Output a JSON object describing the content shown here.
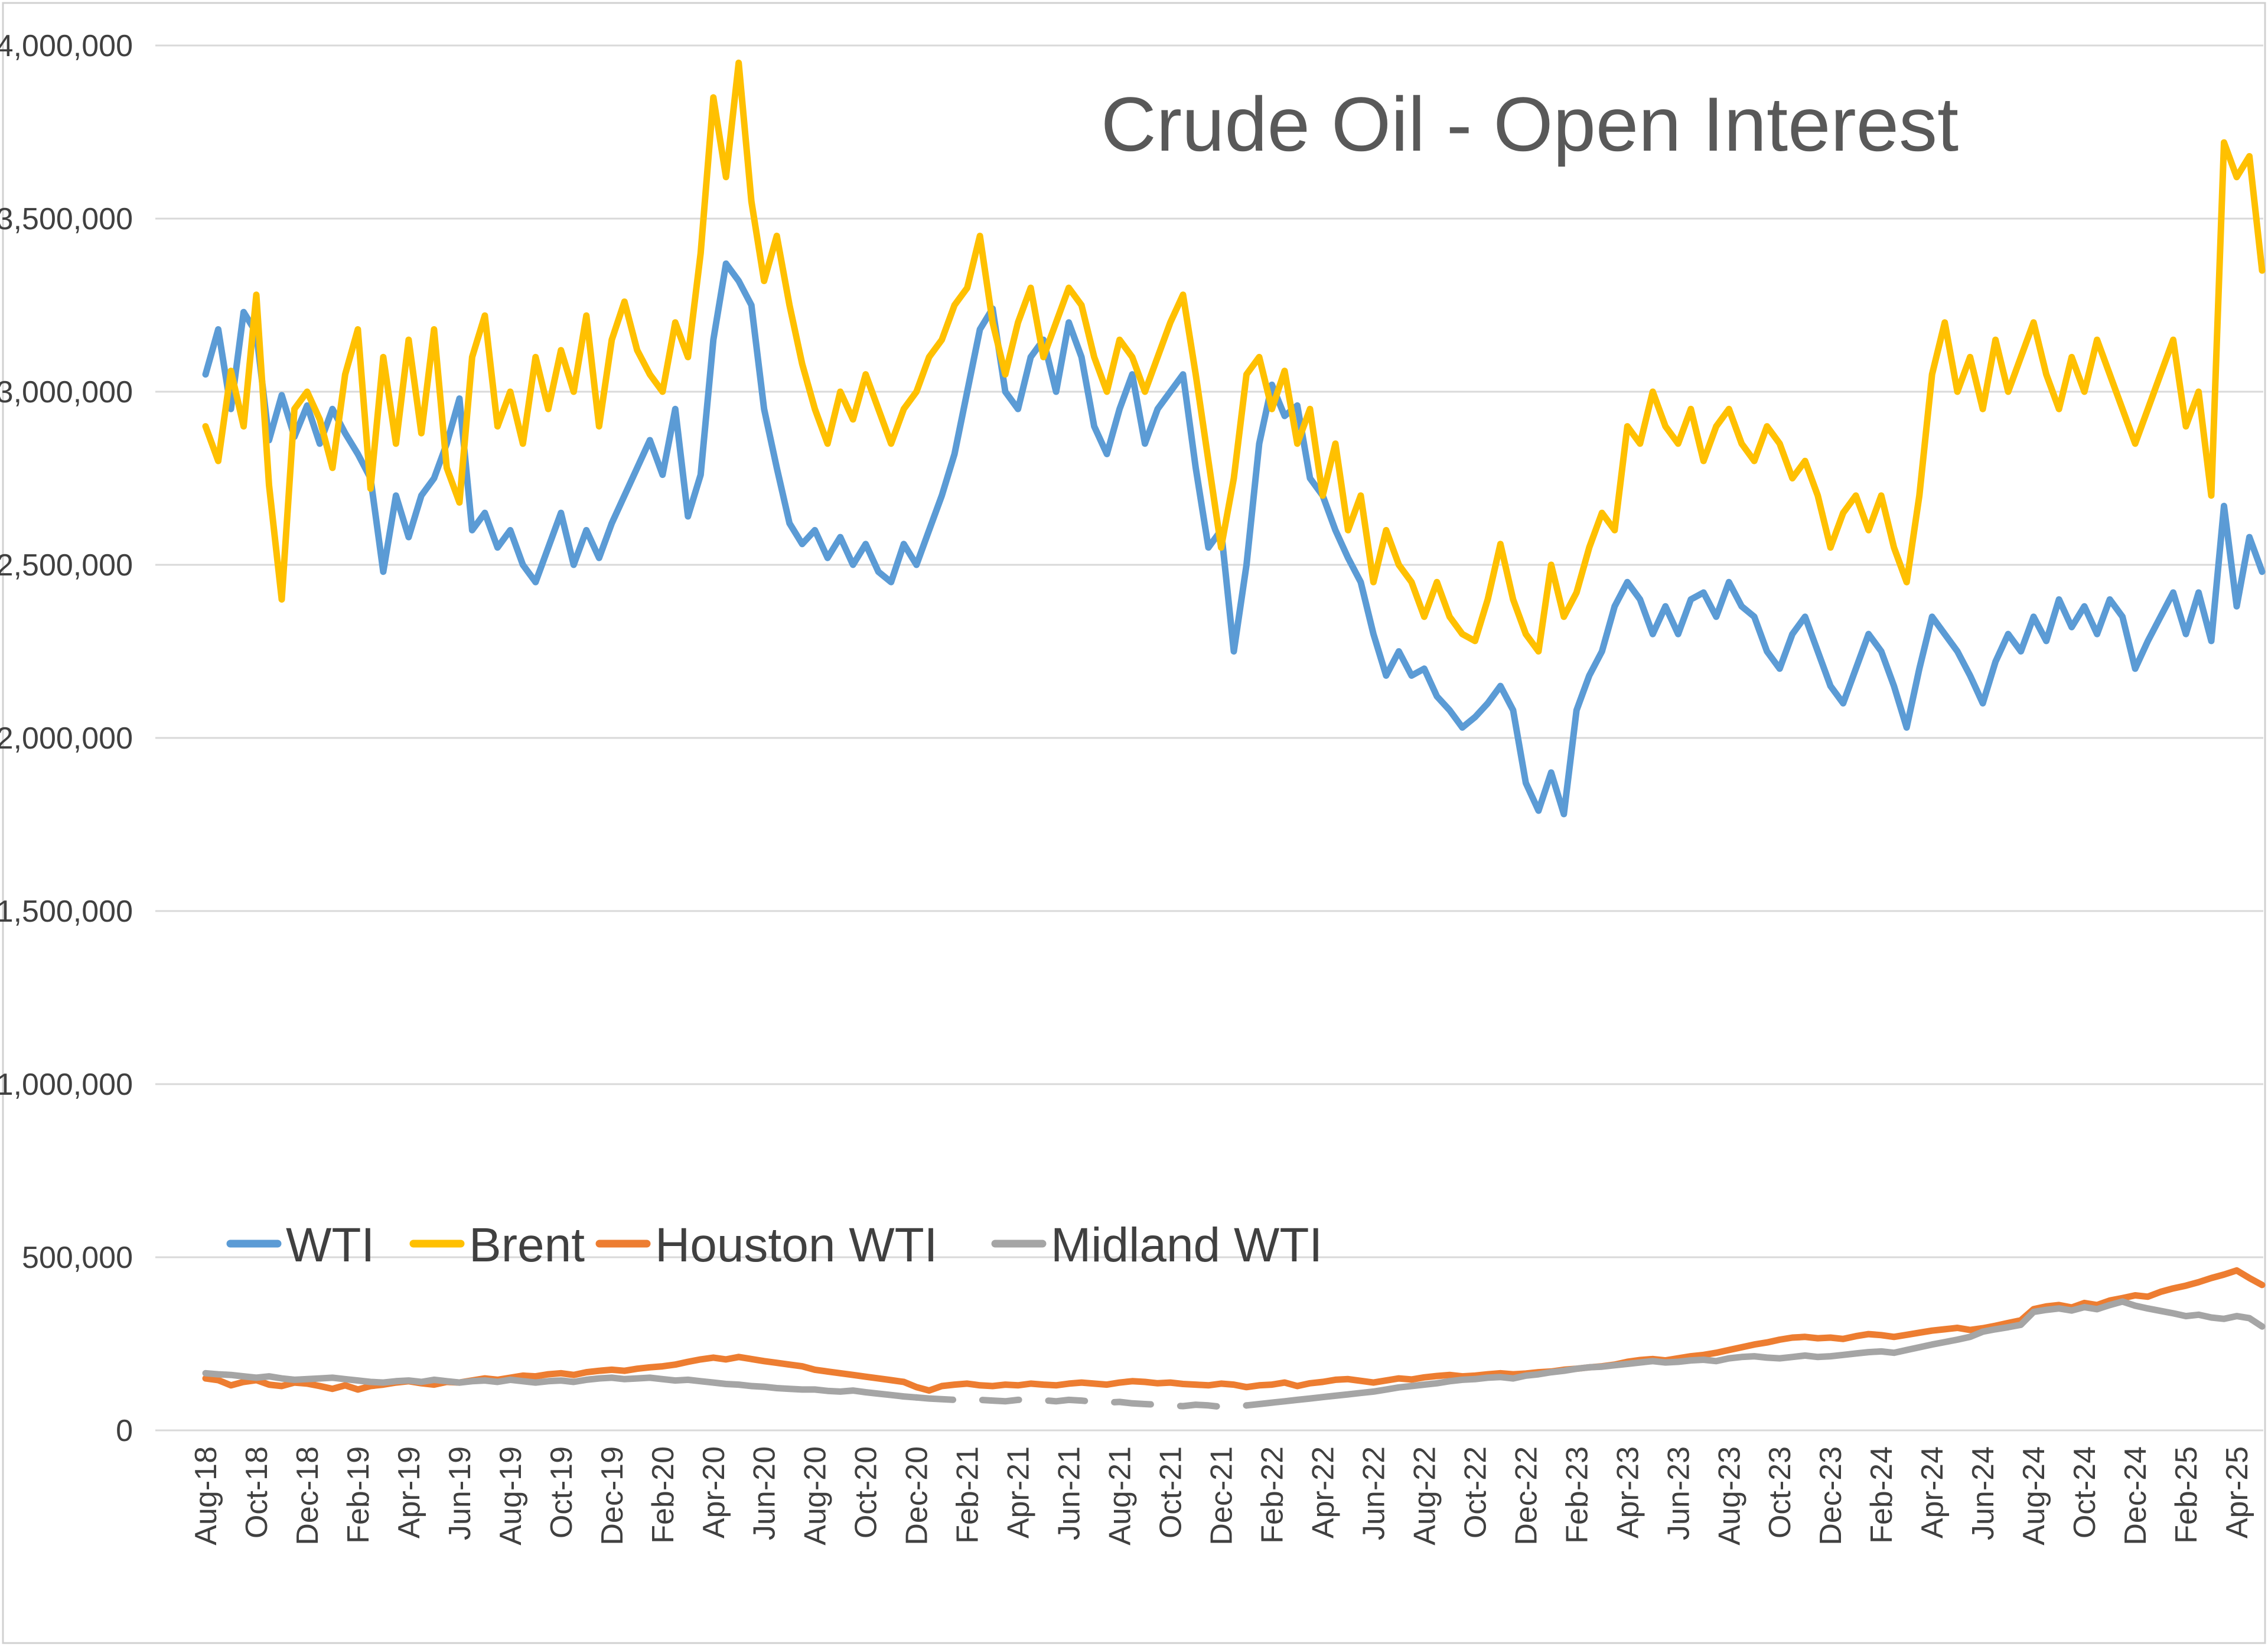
{
  "page": {
    "title": "Crude Oil - Open Interest"
  },
  "colors": {
    "wti_blue": "#5B9BD5",
    "brent_yellow": "#FFC000",
    "houston_orange": "#ED7D31",
    "midland_gray": "#A5A5A5",
    "title_text": "#595959",
    "axis_text": "#404040",
    "gridline": "#D9D9D9",
    "background": "#FFFFFF"
  },
  "chart_data": {
    "type": "line",
    "title": "Crude Oil - Open Interest",
    "grid": "horizontal-only",
    "legend_position": "inside-lower-left",
    "x_axis": {
      "label_rotation_degrees": -90,
      "points_per_month": 2,
      "first_data_point": "Aug-18",
      "last_data_point": "May-25",
      "tick_every_months": 2,
      "tick_labels": [
        "Aug-18",
        "Oct-18",
        "Dec-18",
        "Feb-19",
        "Apr-19",
        "Jun-19",
        "Aug-19",
        "Oct-19",
        "Dec-19",
        "Feb-20",
        "Apr-20",
        "Jun-20",
        "Aug-20",
        "Oct-20",
        "Dec-20",
        "Feb-21",
        "Apr-21",
        "Jun-21",
        "Aug-21",
        "Oct-21",
        "Dec-21",
        "Feb-22",
        "Apr-22",
        "Jun-22",
        "Aug-22",
        "Oct-22",
        "Dec-22",
        "Feb-23",
        "Apr-23",
        "Jun-23",
        "Aug-23",
        "Oct-23",
        "Dec-23",
        "Feb-24",
        "Apr-24",
        "Jun-24",
        "Aug-24",
        "Oct-24",
        "Dec-24",
        "Feb-25",
        "Apr-25"
      ]
    },
    "y_axis": {
      "min": 0,
      "max": 4000000,
      "step": 500000,
      "tick_labels": [
        "0",
        "500,000",
        "1,000,000",
        "1,500,000",
        "2,000,000",
        "2,500,000",
        "3,000,000",
        "3,500,000",
        "4,000,000"
      ]
    },
    "values_unit": "contracts",
    "values_scale": 1000,
    "series": [
      {
        "name": "WTI",
        "color": "#5B9BD5",
        "style": "solid",
        "values_thousands": [
          3050,
          3180,
          2950,
          3230,
          3170,
          2860,
          2990,
          2870,
          2960,
          2850,
          2950,
          2880,
          2820,
          2750,
          2480,
          2700,
          2580,
          2700,
          2750,
          2850,
          2980,
          2600,
          2650,
          2550,
          2600,
          2500,
          2450,
          2550,
          2650,
          2500,
          2600,
          2520,
          2620,
          2700,
          2780,
          2860,
          2760,
          2950,
          2640,
          2760,
          3150,
          3370,
          3320,
          3250,
          2950,
          2780,
          2620,
          2560,
          2600,
          2520,
          2580,
          2500,
          2560,
          2480,
          2450,
          2560,
          2500,
          2600,
          2700,
          2820,
          3000,
          3180,
          3240,
          3000,
          2950,
          3100,
          3150,
          3000,
          3200,
          3100,
          2900,
          2820,
          2950,
          3050,
          2850,
          2950,
          3000,
          3050,
          2780,
          2550,
          2600,
          2250,
          2500,
          2850,
          3020,
          2930,
          2960,
          2750,
          2700,
          2600,
          2520,
          2450,
          2300,
          2180,
          2250,
          2180,
          2200,
          2120,
          2080,
          2030,
          2060,
          2100,
          2150,
          2080,
          1870,
          1790,
          1900,
          1780,
          2080,
          2180,
          2250,
          2380,
          2450,
          2400,
          2300,
          2380,
          2300,
          2400,
          2420,
          2350,
          2450,
          2380,
          2350,
          2250,
          2200,
          2300,
          2350,
          2250,
          2150,
          2100,
          2200,
          2300,
          2250,
          2150,
          2030,
          2200,
          2350,
          2300,
          2250,
          2180,
          2100,
          2220,
          2300,
          2250,
          2350,
          2280,
          2400,
          2320,
          2380,
          2300,
          2400,
          2350,
          2200,
          2280,
          2350,
          2420,
          2300,
          2420,
          2280,
          2670,
          2380,
          2580,
          2480
        ]
      },
      {
        "name": "Brent",
        "color": "#FFC000",
        "style": "solid",
        "values_thousands": [
          2900,
          2800,
          3060,
          2900,
          3280,
          2730,
          2400,
          2950,
          3000,
          2920,
          2780,
          3050,
          3180,
          2720,
          3100,
          2850,
          3150,
          2880,
          3180,
          2780,
          2680,
          3100,
          3220,
          2900,
          3000,
          2850,
          3100,
          2950,
          3120,
          3000,
          3220,
          2900,
          3150,
          3260,
          3120,
          3050,
          3000,
          3200,
          3100,
          3400,
          3850,
          3620,
          3950,
          3550,
          3320,
          3450,
          3250,
          3080,
          2950,
          2850,
          3000,
          2920,
          3050,
          2950,
          2850,
          2950,
          3000,
          3100,
          3150,
          3250,
          3300,
          3450,
          3200,
          3050,
          3200,
          3300,
          3100,
          3200,
          3300,
          3250,
          3100,
          3000,
          3150,
          3100,
          3000,
          3100,
          3200,
          3280,
          3050,
          2800,
          2550,
          2750,
          3050,
          3100,
          2950,
          3060,
          2850,
          2950,
          2700,
          2850,
          2600,
          2700,
          2450,
          2600,
          2500,
          2450,
          2350,
          2450,
          2350,
          2300,
          2280,
          2400,
          2560,
          2400,
          2300,
          2250,
          2500,
          2350,
          2420,
          2550,
          2650,
          2600,
          2900,
          2850,
          3000,
          2900,
          2850,
          2950,
          2800,
          2900,
          2950,
          2850,
          2800,
          2900,
          2850,
          2750,
          2800,
          2700,
          2550,
          2650,
          2700,
          2600,
          2700,
          2550,
          2450,
          2700,
          3050,
          3200,
          3000,
          3100,
          2950,
          3150,
          3000,
          3100,
          3200,
          3050,
          2950,
          3100,
          3000,
          3150,
          3050,
          2950,
          2850,
          2950,
          3050,
          3150,
          2900,
          3000,
          2700,
          3720,
          3620,
          3680,
          3350
        ]
      },
      {
        "name": "Houston WTI",
        "color": "#ED7D31",
        "style": "solid",
        "values_thousands": [
          150,
          145,
          130,
          140,
          145,
          132,
          128,
          138,
          135,
          128,
          120,
          130,
          118,
          128,
          132,
          138,
          142,
          136,
          132,
          140,
          138,
          144,
          150,
          146,
          152,
          158,
          156,
          162,
          165,
          160,
          168,
          172,
          175,
          172,
          178,
          182,
          185,
          190,
          198,
          205,
          210,
          205,
          212,
          206,
          200,
          195,
          190,
          185,
          175,
          170,
          165,
          160,
          155,
          150,
          145,
          140,
          125,
          115,
          128,
          132,
          135,
          130,
          128,
          132,
          130,
          135,
          132,
          130,
          135,
          138,
          135,
          132,
          138,
          142,
          140,
          136,
          138,
          134,
          132,
          130,
          135,
          132,
          125,
          130,
          132,
          138,
          128,
          136,
          140,
          146,
          148,
          143,
          138,
          144,
          150,
          147,
          153,
          157,
          160,
          156,
          158,
          162,
          165,
          162,
          164,
          168,
          170,
          175,
          178,
          182,
          185,
          190,
          198,
          203,
          206,
          202,
          208,
          214,
          218,
          224,
          232,
          240,
          248,
          254,
          262,
          268,
          270,
          266,
          268,
          264,
          272,
          278,
          275,
          270,
          276,
          282,
          288,
          292,
          296,
          290,
          295,
          302,
          310,
          318,
          350,
          358,
          362,
          355,
          368,
          362,
          375,
          382,
          390,
          386,
          400,
          410,
          418,
          428,
          440,
          450,
          462,
          440,
          420
        ]
      },
      {
        "name": "Midland WTI",
        "color": "#A5A5A5",
        "style": "solid-with-dashed-segment",
        "dashed_from_index": 56,
        "dashed_to_index": 82,
        "dashed_period_note": "rendered as dashes approx Dec-20 through Dec-21",
        "values_thousands": [
          165,
          162,
          160,
          156,
          152,
          156,
          150,
          146,
          148,
          150,
          152,
          148,
          144,
          140,
          138,
          142,
          144,
          140,
          146,
          142,
          138,
          142,
          144,
          140,
          146,
          142,
          138,
          142,
          144,
          140,
          146,
          150,
          152,
          148,
          150,
          152,
          148,
          144,
          146,
          142,
          138,
          134,
          132,
          128,
          126,
          122,
          120,
          118,
          118,
          114,
          112,
          115,
          110,
          106,
          102,
          98,
          95,
          92,
          90,
          88,
          92,
          88,
          86,
          84,
          88,
          90,
          87,
          84,
          88,
          86,
          82,
          80,
          82,
          78,
          76,
          74,
          72,
          70,
          74,
          72,
          68,
          70,
          72,
          76,
          80,
          84,
          88,
          92,
          96,
          100,
          104,
          108,
          112,
          118,
          124,
          128,
          132,
          136,
          142,
          146,
          148,
          152,
          154,
          150,
          158,
          162,
          168,
          172,
          178,
          182,
          184,
          188,
          192,
          196,
          200,
          196,
          198,
          202,
          204,
          200,
          208,
          212,
          214,
          210,
          208,
          212,
          216,
          212,
          214,
          218,
          222,
          226,
          228,
          224,
          232,
          240,
          248,
          255,
          262,
          270,
          285,
          292,
          298,
          305,
          342,
          348,
          352,
          346,
          356,
          350,
          362,
          372,
          360,
          352,
          345,
          338,
          330,
          334,
          326,
          322,
          330,
          324,
          300
        ]
      }
    ],
    "legend": {
      "items": [
        "WTI",
        "Brent",
        "Houston WTI",
        "Midland WTI"
      ]
    }
  }
}
